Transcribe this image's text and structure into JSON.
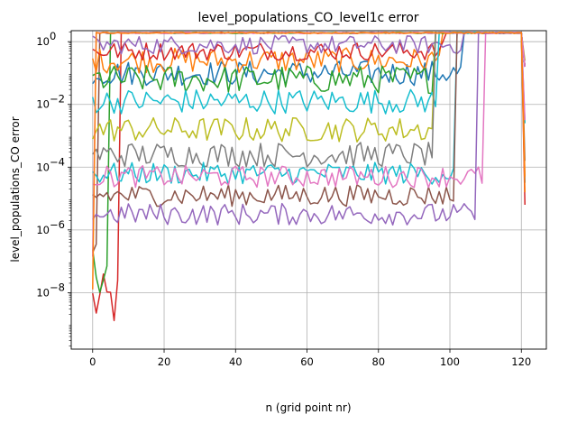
{
  "chart_data": {
    "type": "line",
    "title": "level_populations_CO_level1c error",
    "xlabel": "n (grid point nr)",
    "ylabel": "level_populations_CO error",
    "xlim": [
      -6,
      127
    ],
    "ylim_log10": [
      -9.8,
      0.35
    ],
    "yscale": "log",
    "grid": true,
    "x_ticks": [
      0,
      20,
      40,
      60,
      80,
      100,
      120
    ],
    "x_tick_labels": [
      "0",
      "20",
      "40",
      "60",
      "80",
      "100",
      "120"
    ],
    "y_ticks_log10": [
      -8,
      -6,
      -4,
      -2,
      0
    ],
    "y_tick_labels": [
      {
        "base": "10",
        "exp": "−8"
      },
      {
        "base": "10",
        "exp": "−6"
      },
      {
        "base": "10",
        "exp": "−4"
      },
      {
        "base": "10",
        "exp": "−2"
      },
      {
        "base": "10",
        "exp": "0"
      }
    ],
    "n_points": 122,
    "colors": [
      "#1f77b4",
      "#ff7f0e",
      "#2ca02c",
      "#d62728",
      "#9467bd",
      "#8c564b",
      "#e377c2",
      "#7f7f7f",
      "#bcbd22",
      "#17becf"
    ],
    "series": [
      {
        "color": "#d62728",
        "level_log10": -8.3,
        "saturate_x": 8,
        "noise_log10": 0.9,
        "end_log10": -5.2
      },
      {
        "color": "#2ca02c",
        "level_log10": -7.2,
        "saturate_x": 5,
        "noise_log10": 0.8,
        "end_log10": -0.8
      },
      {
        "color": "#8c564b",
        "level_log10": -7.0,
        "saturate_x": 2,
        "noise_log10": 0.6,
        "end_log10": -0.8
      },
      {
        "color": "#1f77b4",
        "level_log10": -1.0,
        "saturate_x": 104,
        "noise_log10": 0.4,
        "end_log10": -4.5
      },
      {
        "color": "#ff7f0e",
        "level_log10": -0.6,
        "saturate_x": 98,
        "noise_log10": 0.4,
        "end_log10": -4.8
      },
      {
        "color": "#2ca02c",
        "level_log10": -1.2,
        "saturate_x": 96,
        "noise_log10": 0.45,
        "end_log10": -0.8
      },
      {
        "color": "#d62728",
        "level_log10": -0.3,
        "saturate_x": 99,
        "noise_log10": 0.3,
        "end_log10": -0.8
      },
      {
        "color": "#9467bd",
        "level_log10": -0.1,
        "saturate_x": 104,
        "noise_log10": 0.3,
        "end_log10": -0.8
      },
      {
        "color": "#17becf",
        "level_log10": -1.9,
        "saturate_x": 97,
        "noise_log10": 0.4,
        "end_log10": -2.6
      },
      {
        "color": "#bcbd22",
        "level_log10": -2.8,
        "saturate_x": 96,
        "noise_log10": 0.4,
        "end_log10": -0.6
      },
      {
        "color": "#7f7f7f",
        "level_log10": -3.6,
        "saturate_x": 96,
        "noise_log10": 0.4,
        "end_log10": -3.8
      },
      {
        "color": "#17becf",
        "level_log10": -4.2,
        "saturate_x": 102,
        "noise_log10": 0.35,
        "end_log10": -0.8
      },
      {
        "color": "#8c564b",
        "level_log10": -4.9,
        "saturate_x": 102,
        "noise_log10": 0.35,
        "end_log10": -0.8
      },
      {
        "color": "#e377c2",
        "level_log10": -4.3,
        "saturate_x": 110,
        "noise_log10": 0.35,
        "end_log10": -2.5
      },
      {
        "color": "#9467bd",
        "level_log10": -5.5,
        "saturate_x": 108,
        "noise_log10": 0.35,
        "end_log10": -0.8
      },
      {
        "color": "#e377c2",
        "level_log10": -7.3,
        "saturate_x": 1,
        "noise_log10": 0.7,
        "end_log10": -0.8
      },
      {
        "color": "#ff7f0e",
        "level_log10": -7.5,
        "saturate_x": 1,
        "noise_log10": 0.7,
        "end_log10": -4.3
      }
    ],
    "saturation_level_log10": 0.28
  }
}
